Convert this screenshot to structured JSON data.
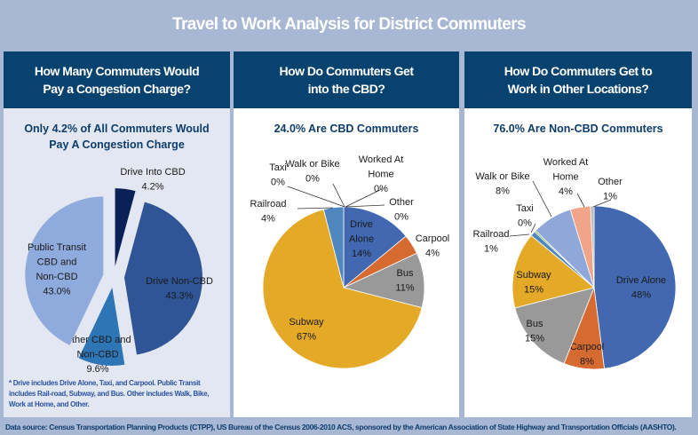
{
  "title": "Travel to Work Analysis for District Commuters",
  "panels": [
    {
      "header": [
        "How Many Commuters Would",
        "Pay a Congestion Charge?"
      ],
      "subtitle": [
        "Only 4.2% of All Commuters Would",
        "Pay A Congestion Charge"
      ],
      "footnote": "* Drive includes Drive Alone, Taxi, and Carpool.  Public Transit includes Rail-road, Subway, and Bus.  Other includes Walk, Bike, Work at Home, and Other."
    },
    {
      "header": [
        "How Do Commuters Get",
        "into the CBD?"
      ],
      "subtitle": [
        "24.0% Are CBD Commuters"
      ]
    },
    {
      "header": [
        "How Do Commuters Get to",
        "Work in Other Locations?"
      ],
      "subtitle": [
        "76.0% Are Non-CBD Commuters"
      ]
    }
  ],
  "source": "Data source:  Census Transportation Planning Products (CTPP), US Bureau of the Census 2006-2010 ACS, sponsored by the American Association of State Highway and Transportation Officials (AASHTO).",
  "chart_data": [
    {
      "type": "pie",
      "exploded": true,
      "series": [
        {
          "label": [
            "Drive Into  CBD"
          ],
          "value_text": "4.2%",
          "value": 4.2,
          "color": "#0a2157"
        },
        {
          "label": [
            "Drive Non-CBD"
          ],
          "value_text": "43.3%",
          "value": 43.3,
          "color": "#2f5597"
        },
        {
          "label": [
            "Other CBD and",
            "Non-CBD"
          ],
          "value_text": "9.6%",
          "value": 9.6,
          "color": "#2e75b6"
        },
        {
          "label": [
            "Public Transit",
            "CBD and",
            "Non-CBD"
          ],
          "value_text": "43.0%",
          "value": 43.0,
          "color": "#8faadc"
        }
      ]
    },
    {
      "type": "pie",
      "series": [
        {
          "label": [
            "Drive",
            "Alone"
          ],
          "value_text": "14%",
          "value": 14,
          "color": "#4168b0"
        },
        {
          "label": [
            "Carpool"
          ],
          "value_text": "4%",
          "value": 4,
          "color": "#d66b32"
        },
        {
          "label": [
            "Bus"
          ],
          "value_text": "11%",
          "value": 11,
          "color": "#999999"
        },
        {
          "label": [
            "Subway"
          ],
          "value_text": "67%",
          "value": 67,
          "color": "#e4a927"
        },
        {
          "label": [
            "Railroad"
          ],
          "value_text": "4%",
          "value": 4,
          "color": "#4f88bf"
        },
        {
          "label": [
            "Taxi"
          ],
          "value_text": "0%",
          "value": 0,
          "color": "#6ca544"
        },
        {
          "label": [
            "Walk or Bike"
          ],
          "value_text": "0%",
          "value": 0,
          "color": "#8fa7d9"
        },
        {
          "label": [
            "Worked At",
            "Home"
          ],
          "value_text": "0%",
          "value": 0,
          "color": "#f0a58a"
        },
        {
          "label": [
            "Other"
          ],
          "value_text": "0%",
          "value": 0,
          "color": "#bbbbbb"
        }
      ]
    },
    {
      "type": "pie",
      "series": [
        {
          "label": [
            "Drive Alone"
          ],
          "value_text": "48%",
          "value": 48,
          "color": "#4168b0"
        },
        {
          "label": [
            "Carpool"
          ],
          "value_text": "8%",
          "value": 8,
          "color": "#d66b32"
        },
        {
          "label": [
            "Bus"
          ],
          "value_text": "15%",
          "value": 15,
          "color": "#999999"
        },
        {
          "label": [
            "Subway"
          ],
          "value_text": "15%",
          "value": 15,
          "color": "#e4a927"
        },
        {
          "label": [
            "Railroad"
          ],
          "value_text": "1%",
          "value": 1,
          "color": "#4f88bf"
        },
        {
          "label": [
            "Taxi"
          ],
          "value_text": "0%",
          "value": 0.3,
          "color": "#6ca544"
        },
        {
          "label": [
            "Walk or Bike"
          ],
          "value_text": "8%",
          "value": 8,
          "color": "#8fa7d9"
        },
        {
          "label": [
            "Worked At",
            "Home"
          ],
          "value_text": "4%",
          "value": 4,
          "color": "#f0a58a"
        },
        {
          "label": [
            "Other"
          ],
          "value_text": "1%",
          "value": 0.7,
          "color": "#bbbbbb"
        }
      ]
    }
  ]
}
